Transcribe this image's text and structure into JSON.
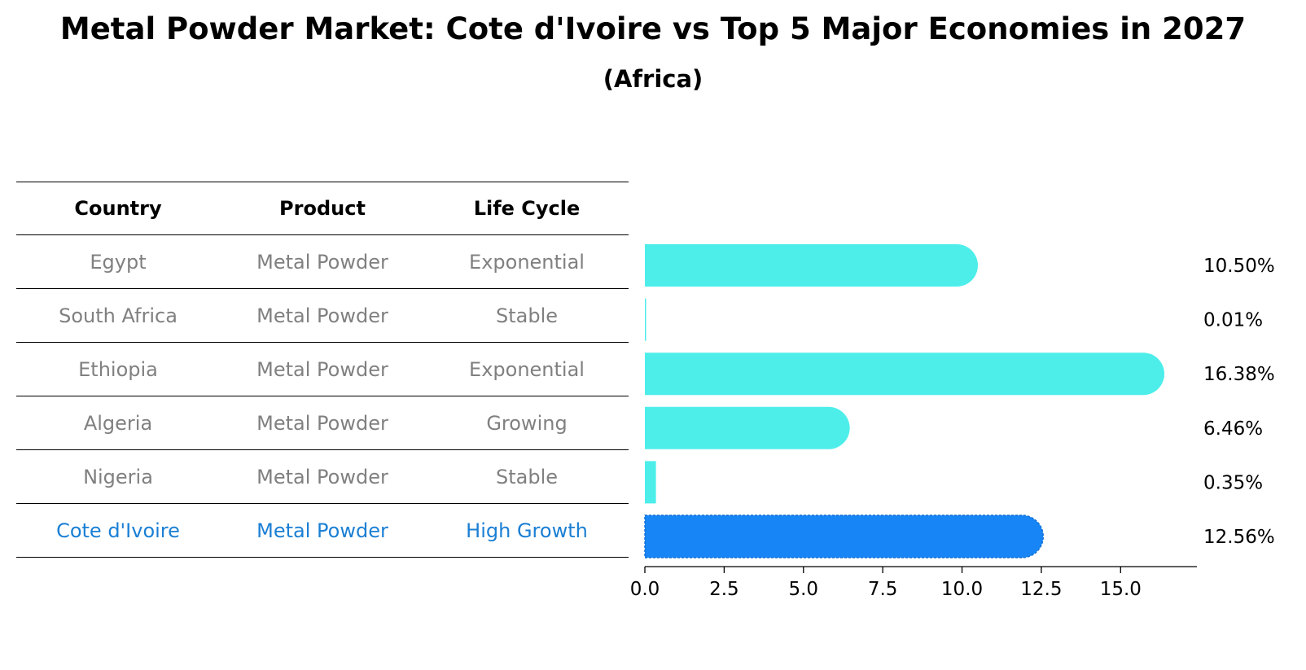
{
  "title": "Metal Powder Market: Cote d'Ivoire vs Top 5 Major Economies in 2027",
  "subtitle": "(Africa)",
  "table": {
    "headers": [
      "Country",
      "Product",
      "Life Cycle"
    ],
    "rows": [
      {
        "country": "Egypt",
        "product": "Metal Powder",
        "life_cycle": "Exponential"
      },
      {
        "country": "South Africa",
        "product": "Metal Powder",
        "life_cycle": "Stable"
      },
      {
        "country": "Ethiopia",
        "product": "Metal Powder",
        "life_cycle": "Exponential"
      },
      {
        "country": "Algeria",
        "product": "Metal Powder",
        "life_cycle": "Growing"
      },
      {
        "country": "Nigeria",
        "product": "Metal Powder",
        "life_cycle": "Stable"
      },
      {
        "country": "Cote d'Ivoire",
        "product": "Metal Powder",
        "life_cycle": "High Growth"
      }
    ]
  },
  "colors": {
    "bar": "#4deeea",
    "highlight_bar": "#1785f5",
    "row_text": "#808080",
    "highlight_text": "#1a7fd4"
  },
  "chart_data": {
    "type": "bar",
    "orientation": "horizontal",
    "categories": [
      "Egypt",
      "South Africa",
      "Ethiopia",
      "Algeria",
      "Nigeria",
      "Cote d'Ivoire"
    ],
    "values": [
      10.5,
      0.01,
      16.38,
      6.46,
      0.35,
      12.56
    ],
    "value_labels": [
      "10.50%",
      "0.01%",
      "16.38%",
      "6.46%",
      "0.35%",
      "12.56%"
    ],
    "highlight_category": "Cote d'Ivoire",
    "xlim": [
      0,
      17.2
    ],
    "xticks": [
      0.0,
      2.5,
      5.0,
      7.5,
      10.0,
      12.5,
      15.0
    ],
    "xtick_labels": [
      "0.0",
      "2.5",
      "5.0",
      "7.5",
      "10.0",
      "12.5",
      "15.0"
    ],
    "grid": false
  }
}
